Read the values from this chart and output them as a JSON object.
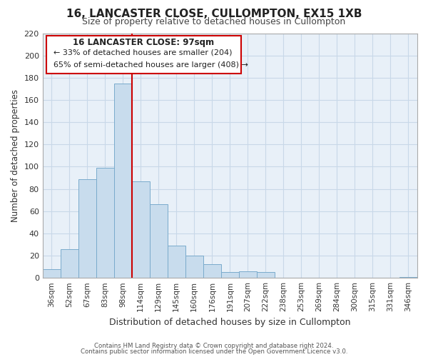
{
  "title": "16, LANCASTER CLOSE, CULLOMPTON, EX15 1XB",
  "subtitle": "Size of property relative to detached houses in Cullompton",
  "xlabel": "Distribution of detached houses by size in Cullompton",
  "ylabel": "Number of detached properties",
  "bin_labels": [
    "36sqm",
    "52sqm",
    "67sqm",
    "83sqm",
    "98sqm",
    "114sqm",
    "129sqm",
    "145sqm",
    "160sqm",
    "176sqm",
    "191sqm",
    "207sqm",
    "222sqm",
    "238sqm",
    "253sqm",
    "269sqm",
    "284sqm",
    "300sqm",
    "315sqm",
    "331sqm",
    "346sqm"
  ],
  "bar_heights": [
    8,
    26,
    89,
    99,
    175,
    87,
    66,
    29,
    20,
    12,
    5,
    6,
    5,
    0,
    0,
    0,
    0,
    0,
    0,
    0,
    1
  ],
  "bar_color": "#c8dced",
  "bar_edge_color": "#7aabcc",
  "vline_color": "#cc0000",
  "ylim": [
    0,
    220
  ],
  "yticks": [
    0,
    20,
    40,
    60,
    80,
    100,
    120,
    140,
    160,
    180,
    200,
    220
  ],
  "annotation_title": "16 LANCASTER CLOSE: 97sqm",
  "annotation_line1": "← 33% of detached houses are smaller (204)",
  "annotation_line2": "65% of semi-detached houses are larger (408) →",
  "footer1": "Contains HM Land Registry data © Crown copyright and database right 2024.",
  "footer2": "Contains public sector information licensed under the Open Government Licence v3.0.",
  "bg_color": "#ffffff",
  "grid_color": "#c8d8e8",
  "plot_bg_color": "#e8f0f8"
}
